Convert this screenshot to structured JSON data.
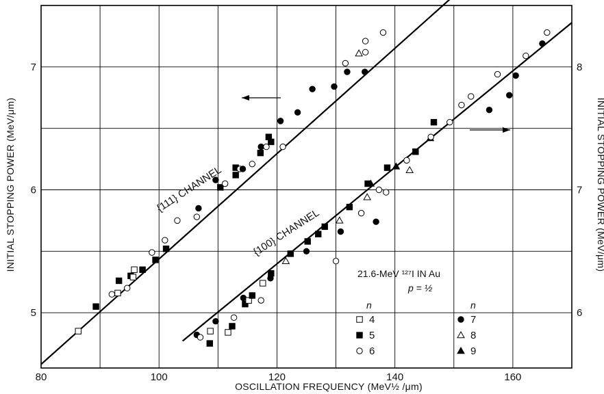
{
  "chart_data": {
    "type": "scatter",
    "title": "",
    "xlabel": "OSCILLATION FREQUENCY (MeV½ /μm)",
    "ylabel_left": "INITIAL STOPPING POWER (MeV/μm)",
    "ylabel_right": "INITIAL STOPPING POWER (MeV/μm)",
    "xlim": [
      80,
      170
    ],
    "ylim_left": [
      4.55,
      7.5
    ],
    "ylim_right": [
      5.55,
      8.5
    ],
    "x_ticks": [
      80,
      100,
      120,
      140,
      160
    ],
    "y_ticks_left": [
      5,
      6,
      7
    ],
    "y_ticks_right": [
      6,
      7,
      8
    ],
    "grid": true,
    "annotations": {
      "channel_111": "{111} CHANNEL",
      "channel_100": "{100} CHANNEL",
      "info_line1": "21.6-MeV ¹²⁷I IN Au",
      "info_line2": "p = ½"
    },
    "legend": {
      "placement": "bottom-right",
      "header_left": "n",
      "header_right": "n",
      "entries": [
        {
          "n": "4",
          "marker": "open-square"
        },
        {
          "n": "5",
          "marker": "filled-square"
        },
        {
          "n": "6",
          "marker": "open-circle"
        },
        {
          "n": "7",
          "marker": "filled-circle"
        },
        {
          "n": "8",
          "marker": "open-triangle"
        },
        {
          "n": "9",
          "marker": "filled-triangle"
        }
      ]
    },
    "series": [
      {
        "name": "{111} CHANNEL",
        "axis": "left",
        "fit_line": [
          [
            80,
            4.58
          ],
          [
            150,
            7.58
          ]
        ],
        "points": [
          [
            86.3,
            4.85,
            "open-square"
          ],
          [
            89.3,
            5.05,
            "filled-square"
          ],
          [
            92.0,
            5.15,
            "open-circle"
          ],
          [
            93.0,
            5.16,
            "open-square"
          ],
          [
            93.2,
            5.26,
            "filled-square"
          ],
          [
            94.6,
            5.2,
            "open-circle"
          ],
          [
            95.2,
            5.3,
            "filled-square"
          ],
          [
            95.6,
            5.29,
            "open-square"
          ],
          [
            95.8,
            5.35,
            "open-square"
          ],
          [
            97.2,
            5.35,
            "filled-square"
          ],
          [
            98.8,
            5.49,
            "open-circle"
          ],
          [
            99.4,
            5.43,
            "filled-square"
          ],
          [
            101.0,
            5.59,
            "open-circle"
          ],
          [
            101.2,
            5.52,
            "filled-square"
          ],
          [
            103.1,
            5.75,
            "open-circle"
          ],
          [
            106.4,
            5.78,
            "open-circle"
          ],
          [
            106.7,
            5.85,
            "filled-circle"
          ],
          [
            109.6,
            6.08,
            "filled-circle"
          ],
          [
            110.4,
            6.02,
            "filled-square"
          ],
          [
            111.2,
            6.05,
            "open-circle"
          ],
          [
            113.0,
            6.18,
            "filled-square"
          ],
          [
            113.0,
            6.12,
            "filled-square"
          ],
          [
            113.7,
            6.17,
            "open-circle"
          ],
          [
            114.2,
            6.17,
            "filled-circle"
          ],
          [
            115.8,
            6.21,
            "open-circle"
          ],
          [
            117.2,
            6.3,
            "filled-square"
          ],
          [
            117.3,
            6.35,
            "filled-circle"
          ],
          [
            118.2,
            6.35,
            "open-circle"
          ],
          [
            118.6,
            6.43,
            "filled-square"
          ],
          [
            119.0,
            6.39,
            "filled-square"
          ],
          [
            120.6,
            6.56,
            "filled-circle"
          ],
          [
            121.0,
            6.35,
            "open-circle"
          ],
          [
            123.5,
            6.63,
            "filled-circle"
          ],
          [
            126.0,
            6.82,
            "filled-circle"
          ],
          [
            129.7,
            6.84,
            "filled-circle"
          ],
          [
            131.6,
            7.03,
            "open-circle"
          ],
          [
            131.9,
            6.96,
            "filled-circle"
          ],
          [
            133.9,
            7.11,
            "open-triangle"
          ],
          [
            135.0,
            7.12,
            "open-circle"
          ],
          [
            135.0,
            7.21,
            "open-circle"
          ],
          [
            134.9,
            6.96,
            "filled-circle"
          ],
          [
            138.0,
            7.28,
            "open-circle"
          ]
        ]
      },
      {
        "name": "{100} CHANNEL",
        "axis": "right",
        "fit_line": [
          [
            104,
            5.77
          ],
          [
            170,
            8.36
          ]
        ],
        "points": [
          [
            106.4,
            5.82,
            "filled-circle"
          ],
          [
            107.0,
            5.8,
            "open-circle"
          ],
          [
            108.6,
            5.75,
            "filled-square"
          ],
          [
            108.7,
            5.85,
            "open-square"
          ],
          [
            109.6,
            5.93,
            "filled-circle"
          ],
          [
            111.7,
            5.84,
            "open-square"
          ],
          [
            112.4,
            5.89,
            "filled-square"
          ],
          [
            112.7,
            5.96,
            "open-circle"
          ],
          [
            114.3,
            6.12,
            "filled-circle"
          ],
          [
            114.6,
            6.07,
            "filled-square"
          ],
          [
            115.2,
            6.1,
            "open-square"
          ],
          [
            115.8,
            6.14,
            "filled-square"
          ],
          [
            117.3,
            6.1,
            "open-circle"
          ],
          [
            117.6,
            6.24,
            "open-square"
          ],
          [
            118.9,
            6.28,
            "filled-circle"
          ],
          [
            119.0,
            6.32,
            "filled-square"
          ],
          [
            121.5,
            6.42,
            "open-triangle"
          ],
          [
            122.3,
            6.48,
            "filled-square"
          ],
          [
            125.0,
            6.5,
            "filled-circle"
          ],
          [
            125.2,
            6.58,
            "filled-square"
          ],
          [
            127.0,
            6.64,
            "filled-square"
          ],
          [
            128.1,
            6.7,
            "filled-square"
          ],
          [
            130.0,
            6.42,
            "open-circle"
          ],
          [
            130.8,
            6.66,
            "filled-circle"
          ],
          [
            130.6,
            6.75,
            "open-triangle"
          ],
          [
            132.3,
            6.86,
            "filled-square"
          ],
          [
            134.3,
            6.81,
            "open-circle"
          ],
          [
            135.3,
            6.94,
            "open-triangle"
          ],
          [
            135.4,
            7.05,
            "filled-square"
          ],
          [
            135.9,
            7.05,
            "filled-triangle"
          ],
          [
            136.8,
            6.74,
            "filled-circle"
          ],
          [
            137.3,
            7.0,
            "open-circle"
          ],
          [
            138.5,
            6.98,
            "open-circle"
          ],
          [
            138.7,
            7.18,
            "filled-square"
          ],
          [
            140.2,
            7.19,
            "filled-triangle"
          ],
          [
            142.0,
            7.24,
            "open-circle"
          ],
          [
            142.5,
            7.16,
            "open-triangle"
          ],
          [
            143.5,
            7.31,
            "filled-square"
          ],
          [
            146.6,
            7.55,
            "filled-square"
          ],
          [
            146.0,
            7.42,
            "filled-triangle"
          ],
          [
            146.1,
            7.43,
            "open-circle"
          ],
          [
            149.3,
            7.55,
            "open-circle"
          ],
          [
            151.3,
            7.69,
            "open-circle"
          ],
          [
            152.9,
            7.76,
            "open-circle"
          ],
          [
            156.0,
            7.65,
            "filled-circle"
          ],
          [
            157.4,
            7.94,
            "open-circle"
          ],
          [
            159.4,
            7.77,
            "filled-circle"
          ],
          [
            160.5,
            7.93,
            "filled-circle"
          ],
          [
            162.2,
            8.09,
            "open-circle"
          ],
          [
            165.0,
            8.19,
            "filled-circle"
          ],
          [
            165.8,
            8.28,
            "open-circle"
          ]
        ]
      }
    ]
  }
}
